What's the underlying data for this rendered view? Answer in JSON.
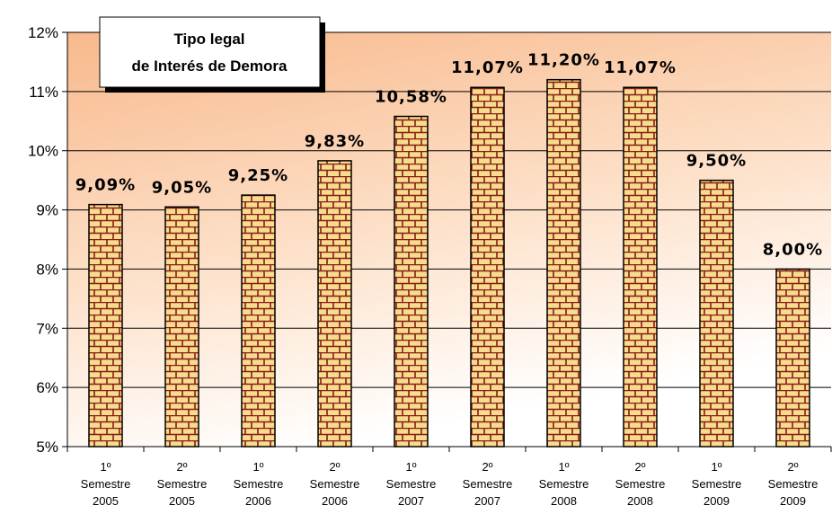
{
  "chart_data": {
    "type": "bar",
    "title": [
      "Tipo legal",
      "de Interés de Demora"
    ],
    "categories": [
      [
        "1º",
        "Semestre",
        "2005"
      ],
      [
        "2º",
        "Semestre",
        "2005"
      ],
      [
        "1º",
        "Semestre",
        "2006"
      ],
      [
        "2º",
        "Semestre",
        "2006"
      ],
      [
        "1º",
        "Semestre",
        "2007"
      ],
      [
        "2º",
        "Semestre",
        "2007"
      ],
      [
        "1º",
        "Semestre",
        "2008"
      ],
      [
        "2º",
        "Semestre",
        "2008"
      ],
      [
        "1º",
        "Semestre",
        "2009"
      ],
      [
        "2º",
        "Semestre",
        "2009"
      ]
    ],
    "values": [
      9.09,
      9.05,
      9.25,
      9.83,
      10.58,
      11.07,
      11.2,
      11.07,
      9.5,
      8.0
    ],
    "data_labels": [
      "9,09%",
      "9,05%",
      "9,25%",
      "9,83%",
      "10,58%",
      "11,07%",
      "11,20%",
      "11,07%",
      "9,50%",
      "8,00%"
    ],
    "ylim": [
      5,
      12
    ],
    "yticks": [
      "5%",
      "6%",
      "7%",
      "8%",
      "9%",
      "10%",
      "11%",
      "12%"
    ],
    "grid": true,
    "colors": {
      "bar_fill": "#f6dd8c",
      "brick_line": "#8b1a1a",
      "plot_bg_top": "#f8b98c",
      "plot_bg_bottom": "#ffffff"
    }
  }
}
